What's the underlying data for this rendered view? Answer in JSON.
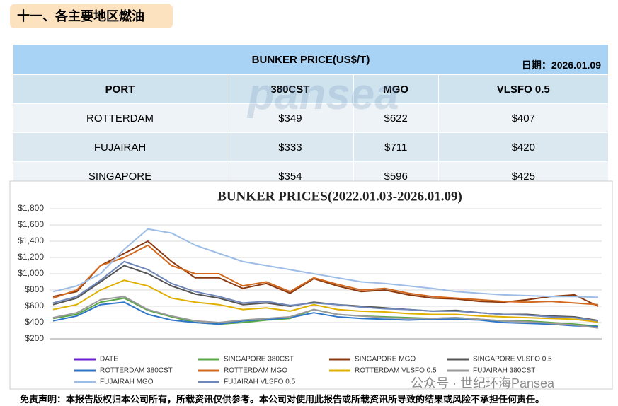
{
  "header": {
    "title": "十一、各主要地区燃油"
  },
  "table": {
    "title": "BUNKER PRICE(US$/T)",
    "date": "日期：2026.01.09",
    "watermark": "pansea",
    "columns": [
      "PORT",
      "380CST",
      "MGO",
      "VLSFO 0.5"
    ],
    "rows": [
      [
        "ROTTERDAM",
        "$349",
        "$622",
        "$407"
      ],
      [
        "FUJAIRAH",
        "$333",
        "$711",
        "$420"
      ],
      [
        "SINGAPORE",
        "$354",
        "$596",
        "$425"
      ]
    ]
  },
  "chart_data": {
    "type": "line",
    "title": "BUNKER PRICES(2022.01.03-2026.01.09)",
    "ylim": [
      200,
      1800
    ],
    "yticks": [
      {
        "value": 200,
        "label": "$200"
      },
      {
        "value": 400,
        "label": "$400"
      },
      {
        "value": 600,
        "label": "$600"
      },
      {
        "value": 800,
        "label": "$800"
      },
      {
        "value": 1000,
        "label": "$1,000"
      },
      {
        "value": 1200,
        "label": "$1,200"
      },
      {
        "value": 1400,
        "label": "$1,400"
      },
      {
        "value": 1600,
        "label": "$1,600"
      },
      {
        "value": 1800,
        "label": "$1,800"
      }
    ],
    "grid": true,
    "series": [
      {
        "name": "DATE",
        "color": "#6a1fd6",
        "values": [
          null,
          null,
          null,
          null,
          null,
          null,
          null,
          null,
          null,
          null,
          null,
          null,
          null,
          null,
          null,
          null,
          null,
          null,
          null,
          null,
          null,
          null,
          null,
          null
        ]
      },
      {
        "name": "SINGAPORE 380CST",
        "color": "#5aa845",
        "values": [
          450,
          500,
          650,
          700,
          550,
          470,
          400,
          380,
          400,
          430,
          450,
          560,
          500,
          480,
          470,
          460,
          450,
          460,
          440,
          420,
          420,
          400,
          380,
          354
        ]
      },
      {
        "name": "SINGAPORE MGO",
        "color": "#8b3a10",
        "values": [
          720,
          780,
          1100,
          1250,
          1400,
          1150,
          950,
          950,
          820,
          880,
          760,
          940,
          850,
          780,
          800,
          740,
          700,
          690,
          660,
          650,
          680,
          720,
          740,
          600
        ]
      },
      {
        "name": "SINGAPORE VLSFO 0.5",
        "color": "#555555",
        "values": [
          620,
          700,
          900,
          1100,
          1000,
          850,
          750,
          700,
          620,
          640,
          600,
          650,
          620,
          600,
          580,
          560,
          540,
          550,
          520,
          500,
          500,
          480,
          470,
          425
        ]
      },
      {
        "name": "ROTTERDAM 380CST",
        "color": "#2e75c9",
        "values": [
          420,
          480,
          620,
          650,
          500,
          430,
          400,
          380,
          420,
          440,
          460,
          520,
          470,
          450,
          440,
          430,
          440,
          440,
          430,
          400,
          390,
          380,
          360,
          349
        ]
      },
      {
        "name": "ROTTERDAM MGO",
        "color": "#d2691e",
        "values": [
          700,
          800,
          1100,
          1200,
          1350,
          1100,
          1000,
          1000,
          850,
          900,
          780,
          950,
          870,
          800,
          820,
          760,
          720,
          700,
          680,
          660,
          650,
          660,
          640,
          620
        ]
      },
      {
        "name": "ROTTERDAM VLSFO 0.5",
        "color": "#e0b000",
        "values": [
          560,
          620,
          800,
          920,
          850,
          700,
          650,
          620,
          560,
          580,
          540,
          620,
          560,
          540,
          530,
          510,
          500,
          500,
          480,
          470,
          460,
          450,
          440,
          407
        ]
      },
      {
        "name": "FUJAIRAH  380CST",
        "color": "#9a9a9a",
        "values": [
          460,
          520,
          680,
          720,
          560,
          480,
          420,
          400,
          430,
          450,
          470,
          560,
          500,
          480,
          460,
          450,
          450,
          460,
          440,
          420,
          410,
          390,
          370,
          333
        ]
      },
      {
        "name": "FUJAIRAH MGO",
        "color": "#9dbde6",
        "values": [
          780,
          850,
          1000,
          1300,
          1550,
          1500,
          1350,
          1250,
          1150,
          1100,
          1050,
          1000,
          950,
          900,
          880,
          850,
          820,
          780,
          760,
          740,
          730,
          720,
          720,
          710
        ]
      },
      {
        "name": "FUJAIRAH VLSFO 0.5",
        "color": "#6f86b8",
        "values": [
          640,
          720,
          920,
          1150,
          1050,
          880,
          780,
          720,
          640,
          660,
          610,
          640,
          620,
          590,
          570,
          560,
          540,
          540,
          520,
          500,
          490,
          470,
          460,
          420
        ]
      }
    ]
  },
  "footer": {
    "disclaimer": "免责声明：本报告版权归本公司所有，所载资讯仅供参考。本公司对使用此报告或所载资讯所导致的结果或风险不承担任何责任。",
    "watermark": "公众号 · 世纪环海Pansea"
  }
}
